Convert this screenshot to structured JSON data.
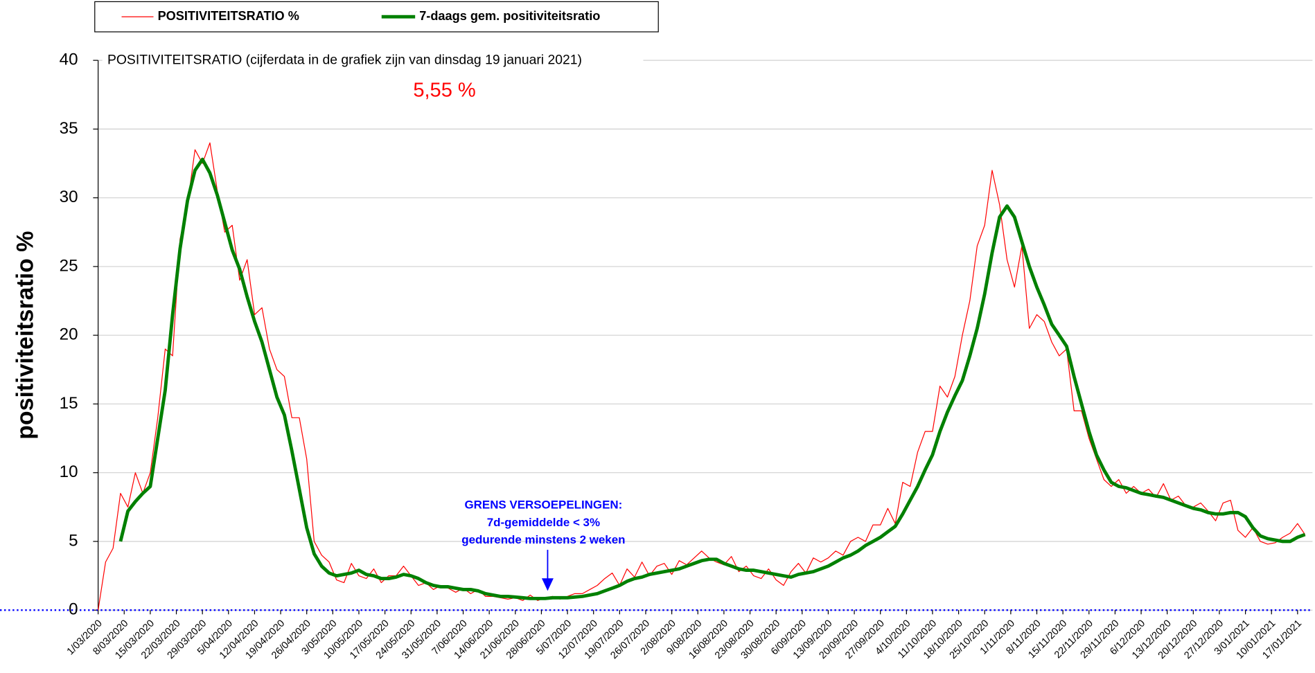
{
  "chart_data": {
    "type": "line",
    "title": "POSITIVITEITSRATIO (cijferdata in de grafiek zijn van dinsdag 19 januari 2021)",
    "subtitle": "5,55 %",
    "y_label": "positiviteitsratio %",
    "annotation": [
      "GRENS VERSOEPELINGEN:",
      "7d-gemiddelde < 3%",
      "gedurende minstens 2 weken"
    ],
    "x": [
      0,
      2,
      4,
      6,
      8,
      10,
      12,
      14,
      16,
      18,
      20,
      22,
      24,
      26,
      28,
      30,
      32,
      34,
      36,
      38,
      40,
      42,
      44,
      46,
      48,
      50,
      52,
      54,
      56,
      58,
      60,
      62,
      64,
      66,
      68,
      70,
      72,
      74,
      76,
      78,
      80,
      82,
      84,
      86,
      88,
      90,
      92,
      94,
      96,
      98,
      100,
      102,
      104,
      106,
      108,
      110,
      112,
      114,
      116,
      118,
      120,
      122,
      124,
      126,
      128,
      130,
      132,
      134,
      136,
      138,
      140,
      142,
      144,
      146,
      148,
      150,
      152,
      154,
      156,
      158,
      160,
      162,
      164,
      166,
      168,
      170,
      172,
      174,
      176,
      178,
      180,
      182,
      184,
      186,
      188,
      190,
      192,
      194,
      196,
      198,
      200,
      202,
      204,
      206,
      208,
      210,
      212,
      214,
      216,
      218,
      220,
      222,
      224,
      226,
      228,
      230,
      232,
      234,
      236,
      238,
      240,
      242,
      244,
      246,
      248,
      250,
      252,
      254,
      256,
      258,
      260,
      262,
      264,
      266,
      268,
      270,
      272,
      274,
      276,
      278,
      280,
      282,
      284,
      286,
      288,
      290,
      292,
      294,
      296,
      298,
      300,
      302,
      304,
      306,
      308,
      310,
      312,
      314,
      316,
      318,
      320,
      322,
      324
    ],
    "series": [
      {
        "name": "POSITIVITEITSRATIO %",
        "color": "#ff0000",
        "values": [
          0,
          3.5,
          4.5,
          8.5,
          7.5,
          10,
          8.5,
          10,
          14,
          19,
          18.5,
          27,
          29.5,
          33.5,
          32.5,
          34,
          30.5,
          27.5,
          28,
          24,
          25.5,
          21.5,
          22,
          19,
          17.5,
          17,
          14,
          14,
          11,
          5,
          4,
          3.5,
          2.2,
          2.0,
          3.4,
          2.5,
          2.3,
          3.0,
          2.0,
          2.5,
          2.5,
          3.2,
          2.5,
          1.8,
          2.0,
          1.5,
          1.8,
          1.6,
          1.3,
          1.6,
          1.2,
          1.5,
          1.0,
          1.0,
          0.9,
          0.8,
          0.9,
          0.7,
          1.1,
          0.7,
          0.9,
          1.0,
          0.8,
          1.0,
          1.2,
          1.2,
          1.5,
          1.8,
          2.3,
          2.7,
          1.8,
          3.0,
          2.4,
          3.5,
          2.5,
          3.2,
          3.4,
          2.6,
          3.6,
          3.3,
          3.8,
          4.3,
          3.8,
          3.5,
          3.3,
          3.9,
          2.8,
          3.2,
          2.5,
          2.3,
          3.0,
          2.2,
          1.8,
          2.8,
          3.4,
          2.7,
          3.8,
          3.5,
          3.8,
          4.3,
          4.0,
          5.0,
          5.3,
          5.0,
          6.2,
          6.2,
          7.4,
          6.3,
          9.3,
          9.0,
          11.5,
          13.0,
          13.0,
          16.3,
          15.5,
          17.0,
          20.0,
          22.5,
          26.5,
          28.0,
          32.0,
          29.5,
          25.5,
          23.5,
          26.5,
          20.5,
          21.5,
          21.0,
          19.5,
          18.5,
          19.0,
          14.5,
          14.5,
          12.5,
          11.0,
          9.5,
          9.0,
          9.5,
          8.5,
          9.0,
          8.5,
          8.8,
          8.2,
          9.2,
          8.0,
          8.3,
          7.6,
          7.5,
          7.8,
          7.2,
          6.5,
          7.8,
          8.0,
          5.8,
          5.3,
          6.0,
          5.0,
          4.8,
          4.9,
          5.3,
          5.6,
          6.3,
          5.5
        ]
      },
      {
        "name": "7-daags gem. positiviteitsratio",
        "color": "#008000",
        "values": [
          null,
          null,
          null,
          5.0,
          7.2,
          7.9,
          8.5,
          9.0,
          12.5,
          16,
          21.5,
          26.3,
          29.8,
          32.0,
          32.8,
          31.8,
          30.2,
          28.2,
          26.2,
          24.8,
          22.8,
          21,
          19.5,
          17.5,
          15.5,
          14.2,
          11.6,
          8.8,
          6.0,
          4.1,
          3.2,
          2.7,
          2.5,
          2.6,
          2.7,
          2.9,
          2.6,
          2.5,
          2.3,
          2.3,
          2.4,
          2.6,
          2.5,
          2.3,
          2.0,
          1.8,
          1.7,
          1.7,
          1.6,
          1.5,
          1.5,
          1.4,
          1.2,
          1.1,
          1.0,
          1.0,
          0.95,
          0.9,
          0.85,
          0.85,
          0.85,
          0.9,
          0.9,
          0.9,
          0.95,
          1.0,
          1.1,
          1.2,
          1.4,
          1.6,
          1.8,
          2.1,
          2.3,
          2.4,
          2.6,
          2.7,
          2.8,
          2.9,
          3.0,
          3.2,
          3.4,
          3.6,
          3.7,
          3.7,
          3.4,
          3.2,
          3.0,
          2.9,
          2.9,
          2.8,
          2.7,
          2.6,
          2.5,
          2.4,
          2.6,
          2.7,
          2.8,
          3.0,
          3.2,
          3.5,
          3.8,
          4.0,
          4.3,
          4.7,
          5.0,
          5.3,
          5.7,
          6.1,
          7.0,
          8.0,
          9.0,
          10.2,
          11.3,
          13.0,
          14.4,
          15.6,
          16.7,
          18.5,
          20.5,
          23.0,
          26.0,
          28.6,
          29.4,
          28.6,
          26.8,
          25.0,
          23.5,
          22.2,
          20.8,
          20.0,
          19.2,
          17.0,
          15.0,
          13.0,
          11.3,
          10.2,
          9.3,
          9.0,
          8.9,
          8.7,
          8.5,
          8.4,
          8.3,
          8.2,
          8.0,
          7.8,
          7.6,
          7.4,
          7.3,
          7.1,
          7.0,
          7.0,
          7.1,
          7.1,
          6.8,
          6.0,
          5.4,
          5.2,
          5.1,
          5.0,
          5.0,
          5.3,
          5.5
        ]
      }
    ],
    "xlim": [
      0,
      326
    ],
    "xticks": [
      {
        "value": 0,
        "label": "1/03/2020"
      },
      {
        "value": 7,
        "label": "8/03/2020"
      },
      {
        "value": 14,
        "label": "15/03/2020"
      },
      {
        "value": 21,
        "label": "22/03/2020"
      },
      {
        "value": 28,
        "label": "29/03/2020"
      },
      {
        "value": 35,
        "label": "5/04/2020"
      },
      {
        "value": 42,
        "label": "12/04/2020"
      },
      {
        "value": 49,
        "label": "19/04/2020"
      },
      {
        "value": 56,
        "label": "26/04/2020"
      },
      {
        "value": 63,
        "label": "3/05/2020"
      },
      {
        "value": 70,
        "label": "10/05/2020"
      },
      {
        "value": 77,
        "label": "17/05/2020"
      },
      {
        "value": 84,
        "label": "24/05/2020"
      },
      {
        "value": 91,
        "label": "31/05/2020"
      },
      {
        "value": 98,
        "label": "7/06/2020"
      },
      {
        "value": 105,
        "label": "14/06/2020"
      },
      {
        "value": 112,
        "label": "21/06/2020"
      },
      {
        "value": 119,
        "label": "28/06/2020"
      },
      {
        "value": 126,
        "label": "5/07/2020"
      },
      {
        "value": 133,
        "label": "12/07/2020"
      },
      {
        "value": 140,
        "label": "19/07/2020"
      },
      {
        "value": 147,
        "label": "26/07/2020"
      },
      {
        "value": 154,
        "label": "2/08/2020"
      },
      {
        "value": 161,
        "label": "9/08/2020"
      },
      {
        "value": 168,
        "label": "16/08/2020"
      },
      {
        "value": 175,
        "label": "23/08/2020"
      },
      {
        "value": 182,
        "label": "30/08/2020"
      },
      {
        "value": 189,
        "label": "6/09/2020"
      },
      {
        "value": 196,
        "label": "13/09/2020"
      },
      {
        "value": 203,
        "label": "20/09/2020"
      },
      {
        "value": 210,
        "label": "27/09/2020"
      },
      {
        "value": 217,
        "label": "4/10/2020"
      },
      {
        "value": 224,
        "label": "11/10/2020"
      },
      {
        "value": 231,
        "label": "18/10/2020"
      },
      {
        "value": 238,
        "label": "25/10/2020"
      },
      {
        "value": 245,
        "label": "1/11/2020"
      },
      {
        "value": 252,
        "label": "8/11/2020"
      },
      {
        "value": 259,
        "label": "15/11/2020"
      },
      {
        "value": 266,
        "label": "22/11/2020"
      },
      {
        "value": 273,
        "label": "29/11/2020"
      },
      {
        "value": 280,
        "label": "6/12/2020"
      },
      {
        "value": 287,
        "label": "13/12/2020"
      },
      {
        "value": 294,
        "label": "20/12/2020"
      },
      {
        "value": 301,
        "label": "27/12/2020"
      },
      {
        "value": 308,
        "label": "3/01/2021"
      },
      {
        "value": 315,
        "label": "10/01/2021"
      },
      {
        "value": 322,
        "label": "17/01/2021"
      }
    ],
    "ylim": [
      0,
      40
    ],
    "yticks": [
      0,
      5,
      10,
      15,
      20,
      25,
      30,
      35,
      40
    ],
    "grid": true
  }
}
